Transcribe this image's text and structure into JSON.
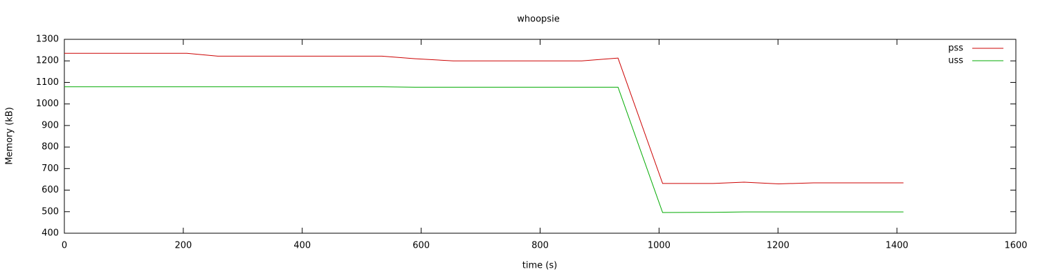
{
  "chart_data": {
    "type": "line",
    "title": "whoopsie",
    "x_label": "time (s)",
    "y_label": "Memory (kB)",
    "x": [
      0,
      206,
      258,
      534,
      590,
      654,
      870,
      931,
      1006,
      1091,
      1143,
      1201,
      1260,
      1411
    ],
    "series": [
      {
        "name": "pss",
        "color": "#cc0000",
        "values": [
          1235,
          1235,
          1222,
          1222,
          1210,
          1200,
          1200,
          1213,
          631,
          631,
          637,
          629,
          634,
          634
        ]
      },
      {
        "name": "uss",
        "color": "#00aa00",
        "values": [
          1080,
          1080,
          1080,
          1080,
          1078,
          1078,
          1078,
          1078,
          496,
          497,
          499,
          499,
          499,
          499
        ]
      }
    ],
    "xlim": [
      0,
      1600
    ],
    "xticks": [
      0,
      200,
      400,
      600,
      800,
      1000,
      1200,
      1400,
      1600
    ],
    "ylim": [
      400,
      1300
    ],
    "yticks": [
      400,
      500,
      600,
      700,
      800,
      900,
      1000,
      1100,
      1200,
      1300
    ],
    "legend": "top-right"
  }
}
